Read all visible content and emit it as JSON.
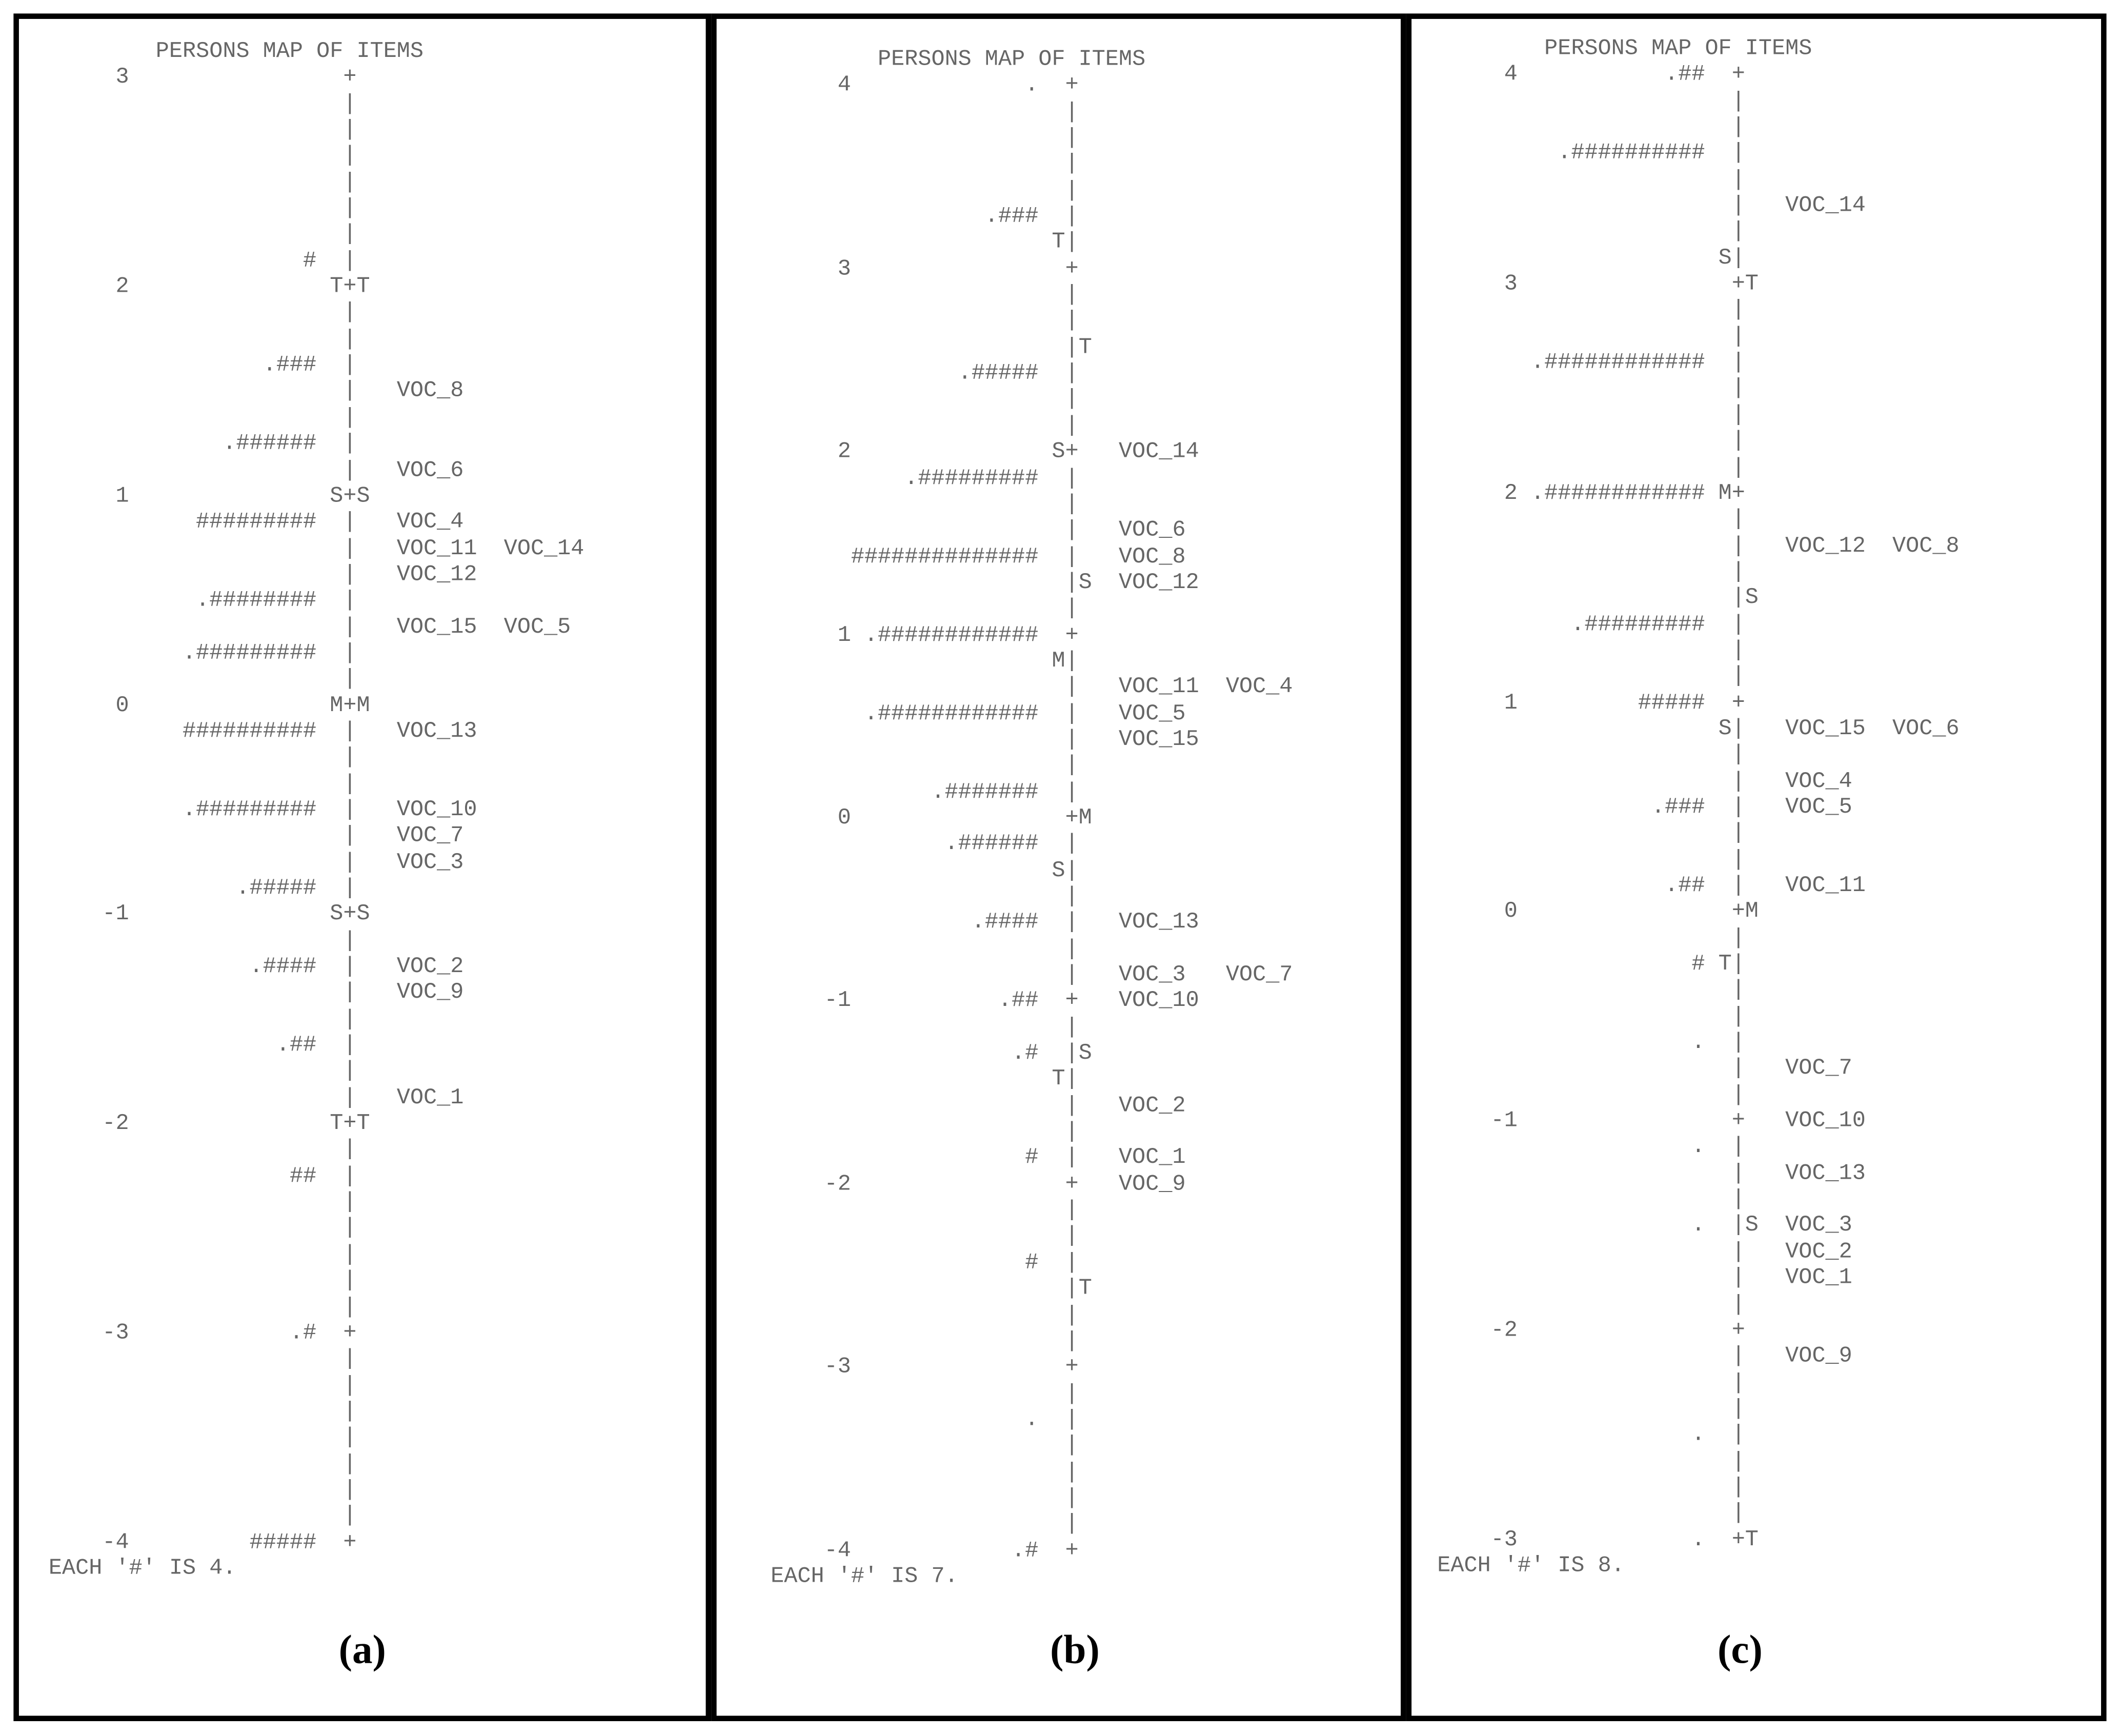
{
  "panels": [
    {
      "title": "PERSONS MAP OF ITEMS",
      "footer": "EACH '#' IS 4.",
      "caption": "(a)",
      "lines": [
        "     3                +",
        "                      |",
        "                      |",
        "                      |",
        "                      |",
        "                      |",
        "                      |",
        "                   #  |",
        "     2               T+T",
        "                      |",
        "                      |",
        "                .###  |",
        "                      |   VOC_8",
        "                      |",
        "             .######  |",
        "                      |   VOC_6",
        "     1               S+S",
        "           #########  |   VOC_4",
        "                      |   VOC_11  VOC_14",
        "                      |   VOC_12",
        "           .########  |",
        "                      |   VOC_15  VOC_5",
        "          .#########  |",
        "                      |",
        "     0               M+M",
        "          ##########  |   VOC_13",
        "                      |",
        "                      |",
        "          .#########  |   VOC_10",
        "                      |   VOC_7",
        "                      |   VOC_3",
        "              .#####  |",
        "    -1               S+S",
        "                      |",
        "               .####  |   VOC_2",
        "                      |   VOC_9",
        "                      |",
        "                 .##  |",
        "                      |",
        "                      |   VOC_1",
        "    -2               T+T",
        "                      |",
        "                  ##  |",
        "                      |",
        "                      |",
        "                      |",
        "                      |",
        "                      |",
        "    -3            .#  +",
        "                      |",
        "                      |",
        "                      |",
        "                      |",
        "                      |",
        "                      |",
        "                      |",
        "    -4         #####  +"
      ]
    },
    {
      "title": "PERSONS MAP OF ITEMS",
      "footer": "EACH '#' IS 7.",
      "caption": "(b)",
      "lines": [
        "     4             .  +",
        "                      |",
        "                      |",
        "                      |",
        "                      |",
        "                .###  |",
        "                     T|",
        "     3                +",
        "                      |",
        "                      |",
        "                      |T",
        "              .#####  |",
        "                      |",
        "                      |",
        "     2               S+   VOC_14",
        "          .#########  |",
        "                      |",
        "                      |   VOC_6",
        "      ##############  |   VOC_8",
        "                      |S  VOC_12",
        "                      |",
        "     1 .############  +",
        "                     M|",
        "                      |   VOC_11  VOC_4",
        "       .############  |   VOC_5",
        "                      |   VOC_15",
        "                      |",
        "            .#######  |",
        "     0                +M",
        "             .######  |",
        "                     S|",
        "                      |",
        "               .####  |   VOC_13",
        "                      |",
        "                      |   VOC_3   VOC_7",
        "    -1           .##  +   VOC_10",
        "                      |",
        "                  .#  |S",
        "                     T|",
        "                      |   VOC_2",
        "                      |",
        "                   #  |   VOC_1",
        "    -2                +   VOC_9",
        "                      |",
        "                      |",
        "                   #  |",
        "                      |T",
        "                      |",
        "                      |",
        "    -3                +",
        "                      |",
        "                   .  |",
        "                      |",
        "                      |",
        "                      |",
        "                      |",
        "    -4            .#  +"
      ]
    },
    {
      "title": "PERSONS MAP OF ITEMS",
      "footer": "EACH '#' IS 8.",
      "caption": "(c)",
      "lines": [
        "     4           .##  +",
        "                      |",
        "                      |",
        "         .##########  |",
        "                      |",
        "                      |   VOC_14",
        "                      |",
        "                     S|",
        "     3                +T",
        "                      |",
        "                      |",
        "       .############  |",
        "                      |",
        "                      |",
        "                      |",
        "                      |",
        "     2 .############ M+",
        "                      |",
        "                      |   VOC_12  VOC_8",
        "                      |",
        "                      |S",
        "          .#########  |",
        "                      |",
        "                      |",
        "     1         #####  +",
        "                     S|   VOC_15  VOC_6",
        "                      |",
        "                      |   VOC_4",
        "                .###  |   VOC_5",
        "                      |",
        "                      |",
        "                 .##  |   VOC_11",
        "     0                +M",
        "                      |",
        "                   # T|",
        "                      |",
        "                      |",
        "                   .  |",
        "                      |   VOC_7",
        "                      |",
        "    -1                +   VOC_10",
        "                   .  |",
        "                      |   VOC_13",
        "                      |",
        "                   .  |S  VOC_3",
        "                      |   VOC_2",
        "                      |   VOC_1",
        "                      |",
        "    -2                +",
        "                      |   VOC_9",
        "                      |",
        "                      |",
        "                   .  |",
        "                      |",
        "                      |",
        "                      |",
        "    -3             .  +T"
      ]
    }
  ]
}
